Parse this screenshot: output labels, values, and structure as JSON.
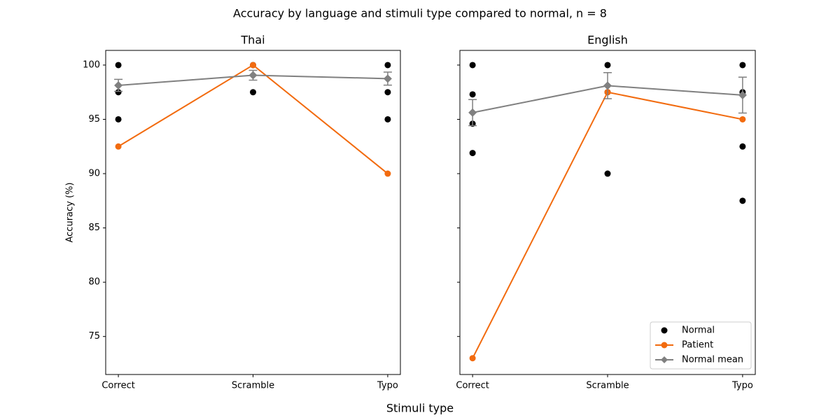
{
  "title": "Accuracy by language and stimuli type compared to normal, n = 8",
  "xlabel": "Stimuli type",
  "chart_data": [
    {
      "type": "line",
      "title": "Thai",
      "ylabel": "Accuracy (%)",
      "categories": [
        "Correct",
        "Scramble",
        "Typo"
      ],
      "ylim": [
        71.5,
        101.35
      ],
      "yticks": [
        75,
        80,
        85,
        90,
        95,
        100
      ],
      "ytick_labels": true,
      "series": [
        {
          "type": "scatter",
          "color": "#000000",
          "x": [
            0,
            0,
            0,
            1,
            1,
            2,
            2,
            2
          ],
          "values": [
            100,
            97.5,
            95,
            100,
            97.5,
            100,
            97.5,
            95
          ]
        },
        {
          "type": "line",
          "color": "#f26b0f",
          "values": [
            92.5,
            100,
            90
          ]
        },
        {
          "type": "errorbar",
          "color": "#808080",
          "values": [
            98.13,
            99.06,
            98.75
          ],
          "errors": [
            0.55,
            0.45,
            0.6
          ]
        }
      ]
    },
    {
      "type": "line",
      "title": "English",
      "categories": [
        "Correct",
        "Scramble",
        "Typo"
      ],
      "ylim": [
        71.5,
        101.35
      ],
      "yticks": [
        75,
        80,
        85,
        90,
        95,
        100
      ],
      "ytick_labels": false,
      "legend": "lower right",
      "series": [
        {
          "type": "scatter",
          "name": "Normal",
          "color": "#000000",
          "x": [
            0,
            0,
            0,
            0,
            1,
            1,
            1,
            2,
            2,
            2,
            2
          ],
          "values": [
            100,
            97.3,
            94.6,
            91.9,
            100,
            97.5,
            90,
            100,
            97.5,
            92.5,
            87.5
          ]
        },
        {
          "type": "line",
          "name": "Patient",
          "color": "#f26b0f",
          "values": [
            73,
            97.5,
            95
          ]
        },
        {
          "type": "errorbar",
          "name": "Normal mean",
          "color": "#808080",
          "values": [
            95.62,
            98.1,
            97.23
          ],
          "errors": [
            1.2,
            1.2,
            1.65
          ]
        }
      ]
    }
  ]
}
